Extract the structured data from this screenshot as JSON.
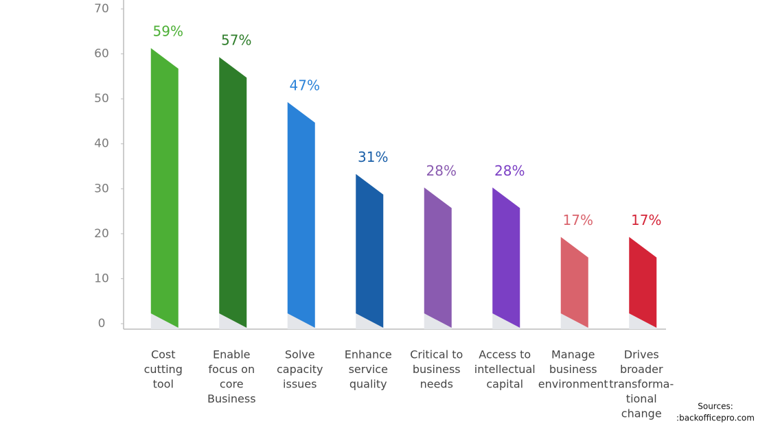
{
  "chart_data": {
    "type": "bar",
    "categories": [
      [
        "Cost",
        "cutting",
        "tool"
      ],
      [
        "Enable",
        "focus on",
        "core",
        "Business"
      ],
      [
        "Solve",
        "capacity",
        "issues"
      ],
      [
        "Enhance",
        "service",
        "quality"
      ],
      [
        "Critical to",
        "business",
        "needs"
      ],
      [
        "Access to",
        "intellectual",
        "capital"
      ],
      [
        "Manage",
        "business",
        "environment"
      ],
      [
        "Drives",
        "broader",
        "transforma-",
        "tional",
        "change"
      ]
    ],
    "values": [
      59,
      57,
      47,
      31,
      28,
      28,
      17,
      17
    ],
    "value_labels": [
      "59%",
      "57%",
      "47%",
      "31%",
      "28%",
      "28%",
      "17%",
      "17%"
    ],
    "colors": [
      "#4caf35",
      "#2e7d2a",
      "#2a82d8",
      "#1a5fa8",
      "#8a5bb0",
      "#7b3fc4",
      "#d9636c",
      "#d42437"
    ],
    "ylim": [
      0,
      70
    ],
    "yticks": [
      0,
      10,
      20,
      30,
      40,
      50,
      60,
      70
    ],
    "source": [
      "Sources:",
      ":backofficepro.com"
    ]
  }
}
